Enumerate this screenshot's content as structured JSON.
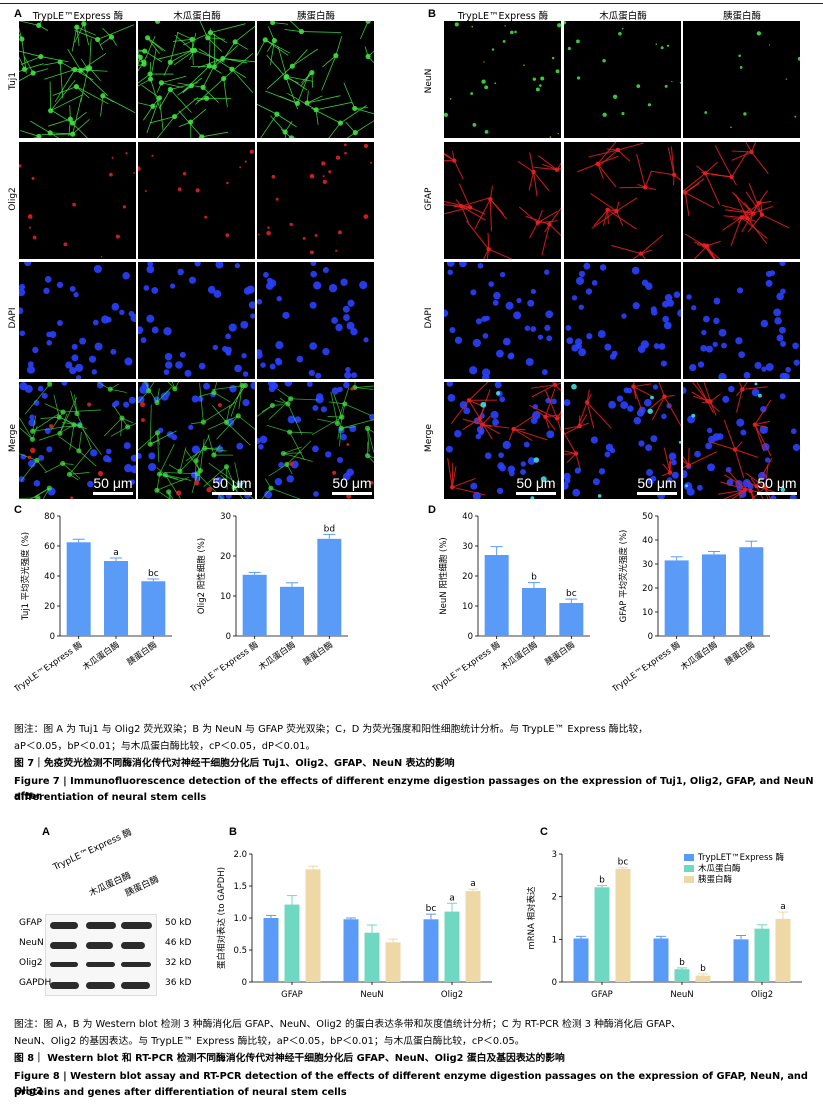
{
  "fig7": {
    "panelA": {
      "label": "A",
      "columns": [
        "TrypLE™Express 酶",
        "木瓜蛋白酶",
        "胰蛋白酶"
      ],
      "rows": [
        "Tuj1",
        "Olig2",
        "DAPI",
        "Merge"
      ],
      "scale": "50 μm"
    },
    "panelB": {
      "label": "B",
      "columns": [
        "TrypLE™Express 酶",
        "木瓜蛋白酶",
        "胰蛋白酶"
      ],
      "rows": [
        "NeuN",
        "GFAP",
        "DAPI",
        "Merge"
      ],
      "scale": "50 μm"
    },
    "panelC": "C",
    "panelD": "D",
    "x_labels": [
      "TrypLE™Express 酶",
      "木瓜蛋白酶",
      "胰蛋白酶"
    ],
    "caption_note_line1": "图注：图 A 为 Tuj1 与 Olig2 荧光双染；B 为 NeuN 与 GFAP 荧光双染；C，D 为荧光强度和阳性细胞统计分析。与 TrypLE™ Express 酶比较，",
    "caption_note_line2": "aP＜0.05，bP＜0.01；与木瓜蛋白酶比较，cP＜0.05，dP＜0.01。",
    "title_cn": "图 7｜免疫荧光检测不同酶消化传代对神经干细胞分化后 Tuj1、Olig2、GFAP、NeuN 表达的影响",
    "title_en_1": "Figure 7 | Immunofluorescence detection of the effects of different enzyme digestion passages on the expression of Tuj1, Olig2, GFAP, and NeuN after",
    "title_en_2": "differentiation of neural stem cells"
  },
  "fig8": {
    "panelA": {
      "label": "A",
      "lanes": [
        "TrypLE™Express 酶",
        "木瓜蛋白酶",
        "胰蛋白酶"
      ],
      "bands": [
        {
          "name": "GFAP",
          "kd": "50 kD"
        },
        {
          "name": "NeuN",
          "kd": "46 kD"
        },
        {
          "name": "Olig2",
          "kd": "32 kD"
        },
        {
          "name": "GAPDH",
          "kd": "36 kD"
        }
      ]
    },
    "panelB": "B",
    "panelC": "C",
    "legend": [
      "TrypLET™Express 酶",
      "木瓜蛋白酶",
      "胰蛋白酶"
    ],
    "caption_note_line1": "图注：图 A，B 为 Western blot 检测 3 种酶消化后 GFAP、NeuN、Olig2 的蛋白表达条带和灰度值统计分析；C 为 RT-PCR 检测 3 种酶消化后 GFAP、",
    "caption_note_line2": "NeuN、Olig2 的基因表达。与 TrypLE™ Express 酶比较，aP＜0.05，bP＜0.01；与木瓜蛋白酶比较，cP＜0.05。",
    "title_cn": "图 8｜ Western blot 和 RT-PCR 检测不同酶消化传代对神经干细胞分化后 GFAP、NeuN、Olig2 蛋白及基因表达的影响",
    "title_en_1": "Figure 8 | Western blot assay and RT-PCR detection of the effects of different enzyme digestion passages on the expression of GFAP, NeuN, and Olig2",
    "title_en_2": "proteins and genes after differentiation of neural stem cells"
  },
  "colors": {
    "bar_blue": "#5b9bf8",
    "bar_teal": "#6fd8c0",
    "bar_tan": "#eed9a6",
    "green": "#3fe03f",
    "red": "#e02020",
    "blue": "#2a40ff"
  },
  "chart_data": [
    {
      "id": "fig7C-tuj1",
      "type": "bar",
      "categories": [
        "TrypLE™Express 酶",
        "木瓜蛋白酶",
        "胰蛋白酶"
      ],
      "values": [
        62.5,
        50.0,
        36.5
      ],
      "errors": [
        2.0,
        2.0,
        1.5
      ],
      "annotations": [
        "",
        "a",
        "bc"
      ],
      "ylabel": "Tuj1 平均荧光强度 (%)",
      "ylim": [
        0,
        80
      ],
      "yticks": [
        0,
        20,
        40,
        60,
        80
      ]
    },
    {
      "id": "fig7C-olig2",
      "type": "bar",
      "categories": [
        "TrypLE™Express 酶",
        "木瓜蛋白酶",
        "胰蛋白酶"
      ],
      "values": [
        15.3,
        12.3,
        24.3
      ],
      "errors": [
        0.6,
        1.0,
        1.1
      ],
      "annotations": [
        "",
        "",
        "bd"
      ],
      "ylabel": "Olig2 阳性细胞 (%)",
      "ylim": [
        0,
        30
      ],
      "yticks": [
        0,
        10,
        20,
        30
      ]
    },
    {
      "id": "fig7D-neun",
      "type": "bar",
      "categories": [
        "TrypLE™Express 酶",
        "木瓜蛋白酶",
        "胰蛋白酶"
      ],
      "values": [
        27.0,
        16.0,
        11.0
      ],
      "errors": [
        2.8,
        1.8,
        1.3
      ],
      "annotations": [
        "",
        "b",
        "bc"
      ],
      "ylabel": "NeuN 阳性细胞 (%)",
      "ylim": [
        0,
        40
      ],
      "yticks": [
        0,
        10,
        20,
        30,
        40
      ]
    },
    {
      "id": "fig7D-gfap",
      "type": "bar",
      "categories": [
        "TrypLE™Express 酶",
        "木瓜蛋白酶",
        "胰蛋白酶"
      ],
      "values": [
        31.5,
        34.0,
        37.0
      ],
      "errors": [
        1.5,
        1.2,
        2.5
      ],
      "annotations": [
        "",
        "",
        ""
      ],
      "ylabel": "GFAP 平均荧光强度 (%)",
      "ylim": [
        0,
        50
      ],
      "yticks": [
        0,
        10,
        20,
        30,
        40,
        50
      ]
    },
    {
      "id": "fig8B-protein",
      "type": "bar",
      "categories": [
        "GFAP",
        "NeuN",
        "Olig2"
      ],
      "series": [
        {
          "values": [
            1.0,
            0.98,
            0.98
          ],
          "errors": [
            0.04,
            0.02,
            0.08
          ]
        },
        {
          "values": [
            1.21,
            0.77,
            1.1
          ],
          "errors": [
            0.14,
            0.12,
            0.13
          ]
        },
        {
          "values": [
            1.76,
            0.62,
            1.42
          ],
          "errors": [
            0.05,
            0.05,
            0.03
          ]
        }
      ],
      "annotations": [
        [
          "",
          "",
          "bc"
        ],
        [
          "",
          "",
          "a"
        ],
        [
          "",
          "",
          "a"
        ]
      ],
      "ylabel": "蛋白相对表达 (to GAPDH)",
      "ylim": [
        0,
        2.0
      ],
      "yticks": [
        "0",
        "0.5",
        "1.0",
        "1.5",
        "2.0"
      ]
    },
    {
      "id": "fig8C-mrna",
      "type": "bar",
      "categories": [
        "GFAP",
        "NeuN",
        "Olig2"
      ],
      "series": [
        {
          "name": "TrypLET™Express 酶",
          "values": [
            1.02,
            1.02,
            1.0
          ],
          "errors": [
            0.05,
            0.05,
            0.09
          ]
        },
        {
          "name": "木瓜蛋白酶",
          "values": [
            2.22,
            0.3,
            1.25
          ],
          "errors": [
            0.04,
            0.03,
            0.09
          ]
        },
        {
          "name": "胰蛋白酶",
          "values": [
            2.65,
            0.15,
            1.48
          ],
          "errors": [
            0.03,
            0.04,
            0.16
          ]
        }
      ],
      "annotations": [
        [
          "",
          "",
          ""
        ],
        [
          "b",
          "b",
          ""
        ],
        [
          "bc",
          "b",
          "a"
        ]
      ],
      "ylabel": "mRNA 相对表达",
      "ylim": [
        0,
        3
      ],
      "yticks": [
        "0",
        "1",
        "2",
        "3"
      ]
    }
  ]
}
